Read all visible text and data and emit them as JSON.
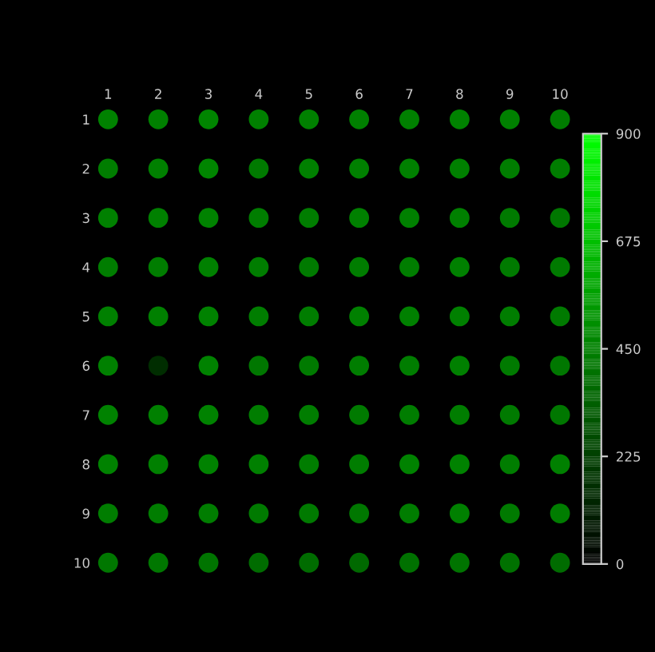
{
  "chart_data": {
    "type": "scatter",
    "marker": "circle",
    "x": [
      1,
      2,
      3,
      4,
      5,
      6,
      7,
      8,
      9,
      10,
      1,
      2,
      3,
      4,
      5,
      6,
      7,
      8,
      9,
      10,
      1,
      2,
      3,
      4,
      5,
      6,
      7,
      8,
      9,
      10,
      1,
      2,
      3,
      4,
      5,
      6,
      7,
      8,
      9,
      10,
      1,
      2,
      3,
      4,
      5,
      6,
      7,
      8,
      9,
      10,
      1,
      2,
      3,
      4,
      5,
      6,
      7,
      8,
      9,
      10,
      1,
      2,
      3,
      4,
      5,
      6,
      7,
      8,
      9,
      10,
      1,
      2,
      3,
      4,
      5,
      6,
      7,
      8,
      9,
      10,
      1,
      2,
      3,
      4,
      5,
      6,
      7,
      8,
      9,
      10,
      1,
      2,
      3,
      4,
      5,
      6,
      7,
      8,
      9,
      10
    ],
    "values": [
      1,
      1,
      1,
      1,
      1,
      1,
      1,
      1,
      1,
      1,
      2,
      2,
      2,
      2,
      2,
      2,
      2,
      2,
      2,
      2,
      3,
      3,
      3,
      3,
      3,
      3,
      3,
      3,
      3,
      3,
      4,
      4,
      4,
      4,
      4,
      4,
      4,
      4,
      4,
      4,
      5,
      5,
      5,
      5,
      5,
      5,
      5,
      5,
      5,
      5,
      6,
      6,
      6,
      6,
      6,
      6,
      6,
      6,
      6,
      6,
      7,
      7,
      7,
      7,
      7,
      7,
      7,
      7,
      7,
      7,
      8,
      8,
      8,
      8,
      8,
      8,
      8,
      8,
      8,
      8,
      9,
      9,
      9,
      9,
      9,
      9,
      9,
      9,
      9,
      9,
      10,
      10,
      10,
      10,
      10,
      10,
      10,
      10,
      10,
      10
    ],
    "cvalues": [
      460,
      450,
      470,
      450,
      450,
      450,
      450,
      460,
      450,
      440,
      440,
      450,
      470,
      430,
      450,
      450,
      450,
      450,
      440,
      440,
      450,
      450,
      460,
      440,
      440,
      450,
      450,
      450,
      430,
      420,
      440,
      440,
      450,
      440,
      430,
      440,
      440,
      450,
      430,
      430,
      450,
      450,
      460,
      440,
      440,
      450,
      450,
      450,
      440,
      430,
      450,
      160,
      460,
      420,
      430,
      440,
      440,
      450,
      430,
      420,
      460,
      450,
      460,
      440,
      440,
      430,
      440,
      440,
      430,
      420,
      460,
      450,
      460,
      450,
      440,
      440,
      460,
      460,
      440,
      450,
      440,
      440,
      440,
      430,
      430,
      420,
      440,
      450,
      430,
      440,
      420,
      420,
      410,
      380,
      380,
      370,
      400,
      410,
      400,
      380
    ],
    "xlim": [
      1,
      10
    ],
    "xticks": [
      1,
      2,
      3,
      4,
      5,
      6,
      7,
      8,
      9,
      10
    ],
    "ylim": [
      10,
      1
    ],
    "yticks": [
      1,
      2,
      3,
      4,
      5,
      6,
      7,
      8,
      9,
      10
    ],
    "clim": [
      0,
      900
    ],
    "cticks": [
      0,
      225,
      450,
      675,
      900
    ]
  }
}
